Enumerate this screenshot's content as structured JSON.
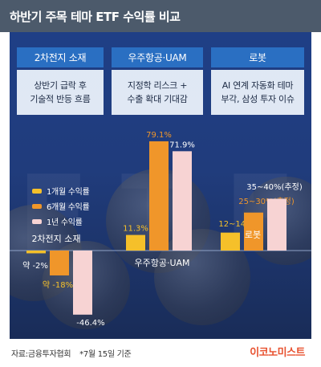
{
  "header": {
    "title": "하반기 주목 테마 ETF 수익률 비교"
  },
  "themes": [
    {
      "name": "2차전지 소재",
      "desc_line1": "상반기 급락 후",
      "desc_line2": "기술적 반등 흐름"
    },
    {
      "name": "우주항공·UAM",
      "desc_line1": "지정학 리스크 +",
      "desc_line2": "수출 확대 기대감"
    },
    {
      "name": "로봇",
      "desc_line1": "AI 연계 자동화 테마",
      "desc_line2": "부각, 삼성 투자 이슈"
    }
  ],
  "chart_data": {
    "type": "bar",
    "title": "하반기 주목 테마 ETF 수익률 비교",
    "categories": [
      "2차전지 소재",
      "우주항공·UAM",
      "로봇"
    ],
    "series": [
      {
        "name": "1개월 수익률",
        "values": [
          -2,
          11.3,
          13
        ],
        "labels": [
          "약 -2%",
          "11.3%",
          "12~14%"
        ],
        "color": "#f5c02a"
      },
      {
        "name": "6개월 수익률",
        "values": [
          -18,
          79.1,
          27.5
        ],
        "labels": [
          "약 -18%",
          "79.1%",
          "25~30%(추정)"
        ],
        "color": "#f0962a"
      },
      {
        "name": "1년 수익률",
        "values": [
          -46.4,
          71.9,
          37.5
        ],
        "labels": [
          "-46.4%",
          "71.9%",
          "35~40%(추정)"
        ],
        "color": "#f7d3d3"
      }
    ],
    "xlabel": "",
    "ylabel": "",
    "ylim": [
      -50,
      80
    ],
    "grid": false,
    "legend_position": "left"
  },
  "footer": {
    "source": "자료:금융투자협회",
    "note": "*7월 15일 기준",
    "brand": "이코노미스트"
  },
  "colors": {
    "title_bg": "#4c5a6b",
    "panel_bg": "#1f3f86",
    "header_bg": "#2a6fc2",
    "brand": "#e8512f"
  }
}
